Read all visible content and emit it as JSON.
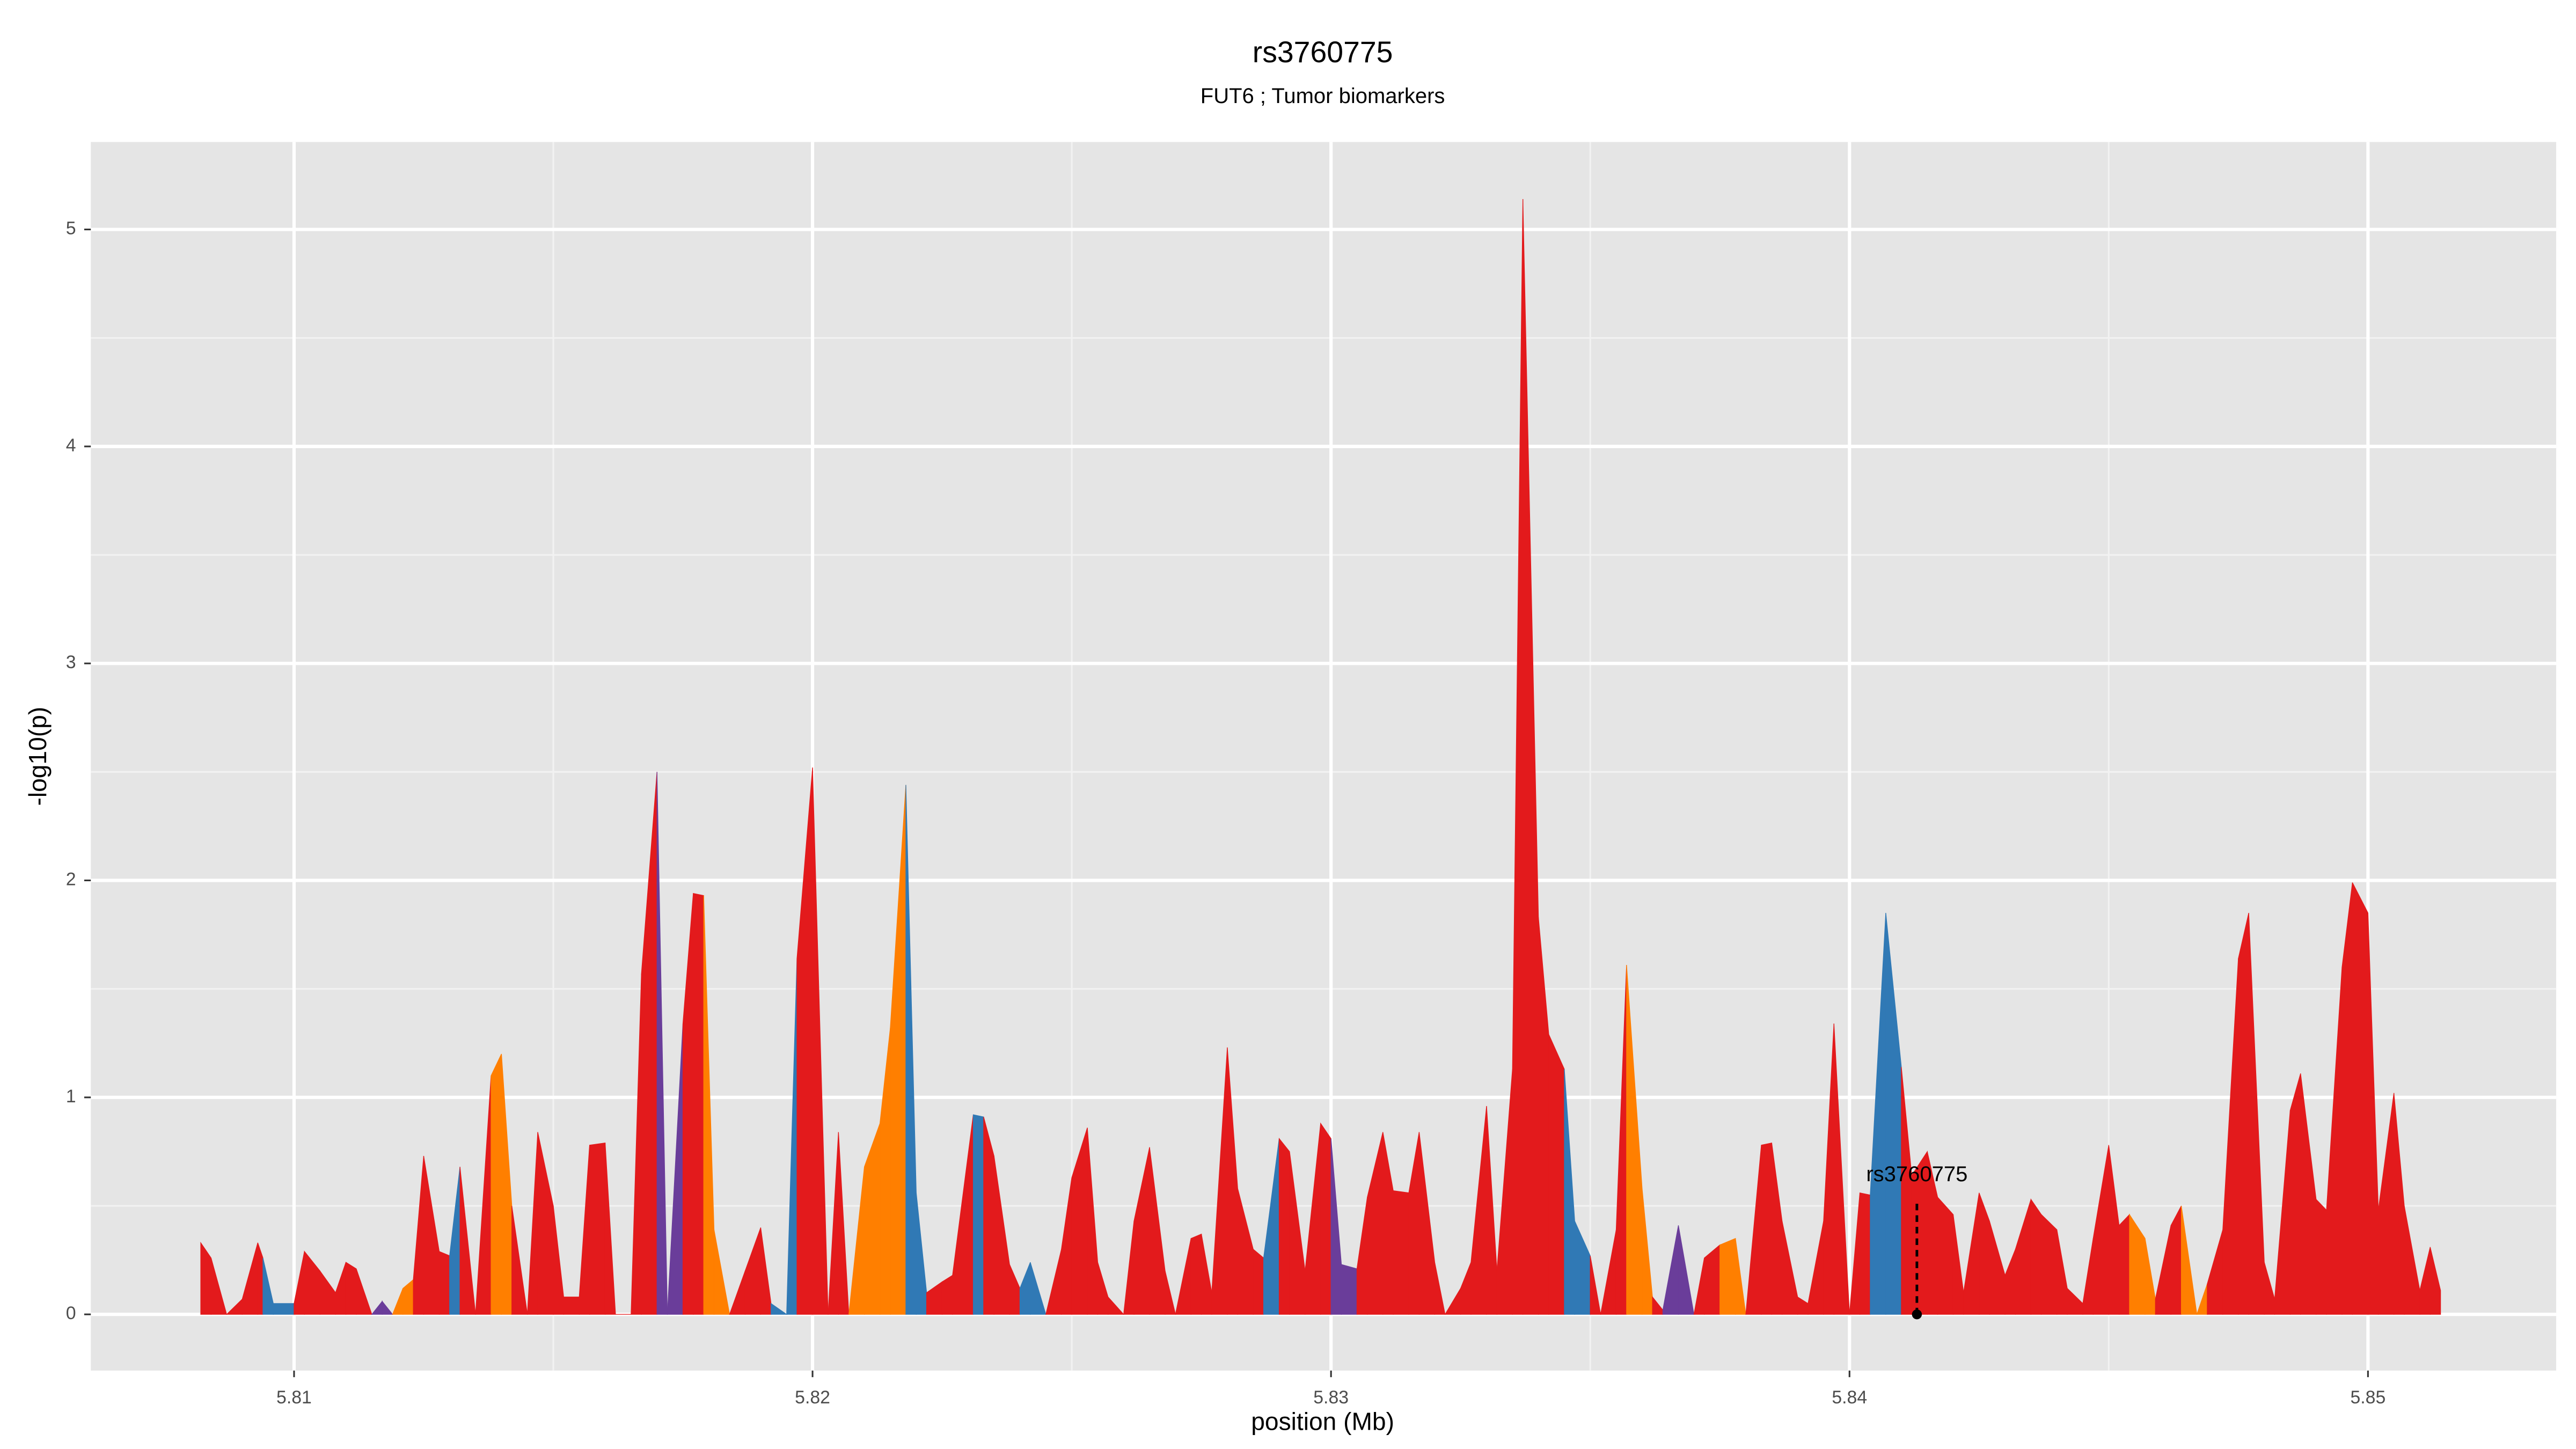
{
  "chart_data": {
    "type": "area",
    "title": "rs3760775",
    "subtitle": "FUT6 ; Tumor biomarkers",
    "x_label": "position (Mb)",
    "y_label": "-log10(p)",
    "xlim": [
      5.80608,
      5.85363
    ],
    "ylim": [
      -0.259,
      5.403
    ],
    "xticks": [
      5.81,
      5.82,
      5.83,
      5.84,
      5.85
    ],
    "yticks": [
      0,
      1,
      2,
      3,
      4,
      5
    ],
    "grid": true,
    "x": [
      5.8082,
      5.8084,
      5.8087,
      5.809,
      5.8093,
      5.8094,
      5.8096,
      5.81,
      5.8102,
      5.8105,
      5.8108,
      5.811,
      5.8112,
      5.8115,
      5.8117,
      5.8119,
      5.8121,
      5.8123,
      5.8125,
      5.8128,
      5.813,
      5.8132,
      5.8135,
      5.8138,
      5.814,
      5.8142,
      5.8145,
      5.8147,
      5.815,
      5.8152,
      5.8155,
      5.8157,
      5.816,
      5.8162,
      5.8165,
      5.8167,
      5.817,
      5.8172,
      5.8175,
      5.8177,
      5.8179,
      5.8181,
      5.8184,
      5.8187,
      5.819,
      5.8192,
      5.8195,
      5.8197,
      5.82,
      5.8203,
      5.8205,
      5.8207,
      5.821,
      5.8213,
      5.8215,
      5.8218,
      5.822,
      5.8222,
      5.8225,
      5.8227,
      5.8231,
      5.8233,
      5.8235,
      5.8238,
      5.824,
      5.8242,
      5.8245,
      5.8248,
      5.825,
      5.8253,
      5.8255,
      5.8257,
      5.826,
      5.8262,
      5.8265,
      5.8268,
      5.827,
      5.8273,
      5.8275,
      5.8277,
      5.828,
      5.8282,
      5.8285,
      5.8287,
      5.829,
      5.8292,
      5.8295,
      5.8298,
      5.83,
      5.8302,
      5.8305,
      5.8307,
      5.831,
      5.8312,
      5.8315,
      5.8317,
      5.832,
      5.8322,
      5.8325,
      5.8327,
      5.833,
      5.8332,
      5.8335,
      5.8337,
      5.834,
      5.8342,
      5.8345,
      5.8347,
      5.835,
      5.8352,
      5.8355,
      5.8357,
      5.836,
      5.8362,
      5.8364,
      5.8367,
      5.837,
      5.8372,
      5.8375,
      5.8378,
      5.838,
      5.8383,
      5.8385,
      5.8387,
      5.839,
      5.8392,
      5.8395,
      5.8397,
      5.84,
      5.8402,
      5.8404,
      5.8407,
      5.841,
      5.8412,
      5.8415,
      5.8417,
      5.842,
      5.8422,
      5.8425,
      5.8427,
      5.843,
      5.8432,
      5.8435,
      5.8437,
      5.844,
      5.8442,
      5.8445,
      5.8447,
      5.845,
      5.8452,
      5.8454,
      5.8457,
      5.8459,
      5.8462,
      5.8464,
      5.8467,
      5.8469,
      5.8472,
      5.8475,
      5.8477,
      5.848,
      5.8482,
      5.8485,
      5.8487,
      5.849,
      5.8492,
      5.8495,
      5.8497,
      5.85,
      5.8502,
      5.8505,
      5.8507,
      5.851,
      5.8512,
      5.8514
    ],
    "values": [
      0.33,
      0.26,
      0,
      0.07,
      0.33,
      0.26,
      0.05,
      0.05,
      0.29,
      0.2,
      0.1,
      0.24,
      0.21,
      0,
      0.06,
      0,
      0.12,
      0.16,
      0.73,
      0.29,
      0.27,
      0.68,
      0,
      1.1,
      1.2,
      0.5,
      0,
      0.84,
      0.5,
      0.08,
      0.08,
      0.78,
      0.79,
      0,
      0,
      1.57,
      2.5,
      0,
      1.34,
      1.94,
      1.93,
      0.39,
      0,
      0.2,
      0.4,
      0.05,
      0,
      1.64,
      2.52,
      0,
      0.84,
      0,
      0.68,
      0.88,
      1.32,
      2.44,
      0.56,
      0.1,
      0.15,
      0.18,
      0.92,
      0.91,
      0.73,
      0.23,
      0.12,
      0.24,
      0,
      0.3,
      0.63,
      0.86,
      0.24,
      0.08,
      0,
      0.43,
      0.77,
      0.2,
      0,
      0.35,
      0.37,
      0.1,
      1.23,
      0.58,
      0.3,
      0.26,
      0.81,
      0.75,
      0.2,
      0.88,
      0.81,
      0.23,
      0.21,
      0.54,
      0.84,
      0.57,
      0.56,
      0.84,
      0.24,
      0,
      0.12,
      0.24,
      0.96,
      0.2,
      1.13,
      5.14,
      1.83,
      1.29,
      1.13,
      0.43,
      0.27,
      0,
      0.39,
      1.61,
      0.58,
      0.08,
      0.02,
      0.41,
      0,
      0.26,
      0.32,
      0.35,
      0,
      0.78,
      0.79,
      0.43,
      0.08,
      0.05,
      0.43,
      1.34,
      0,
      0.56,
      0.55,
      1.85,
      1.14,
      0.64,
      0.75,
      0.54,
      0.46,
      0.1,
      0.56,
      0.43,
      0.18,
      0.3,
      0.53,
      0.46,
      0.39,
      0.12,
      0.05,
      0.35,
      0.78,
      0.41,
      0.46,
      0.35,
      0.07,
      0.41,
      0.5,
      0,
      0.14,
      0.39,
      1.64,
      1.85,
      0.24,
      0.07,
      0.94,
      1.11,
      0.53,
      0.48,
      1.6,
      1.99,
      1.85,
      0.48,
      1.02,
      0.5,
      0.11,
      0.31,
      0.11
    ],
    "colors": [
      "#e31a1c",
      "#e31a1c",
      "#e31a1c",
      "#e31a1c",
      "#e31a1c",
      "#e31a1c",
      "#3079b5",
      "#3079b5",
      "#e31a1c",
      "#e31a1c",
      "#e31a1c",
      "#e31a1c",
      "#e31a1c",
      "#e31a1c",
      "#6a3d9a",
      "#6a3d9a",
      "#ff7f00",
      "#ff7f00",
      "#e31a1c",
      "#e31a1c",
      "#e31a1c",
      "#3079b5",
      "#e31a1c",
      "#e31a1c",
      "#ff7f00",
      "#ff7f00",
      "#e31a1c",
      "#e31a1c",
      "#e31a1c",
      "#e31a1c",
      "#e31a1c",
      "#e31a1c",
      "#e31a1c",
      "#e31a1c",
      "#e31a1c",
      "#e31a1c",
      "#e31a1c",
      "#6a3d9a",
      "#6a3d9a",
      "#e31a1c",
      "#e31a1c",
      "#ff7f00",
      "#ff7f00",
      "#e31a1c",
      "#e31a1c",
      "#e31a1c",
      "#3079b5",
      "#3079b5",
      "#e31a1c",
      "#e31a1c",
      "#e31a1c",
      "#e31a1c",
      "#ff7f00",
      "#ff7f00",
      "#ff7f00",
      "#ff7f00",
      "#3079b5",
      "#3079b5",
      "#e31a1c",
      "#e31a1c",
      "#e31a1c",
      "#3079b5",
      "#e31a1c",
      "#e31a1c",
      "#e31a1c",
      "#3079b5",
      "#3079b5",
      "#e31a1c",
      "#e31a1c",
      "#e31a1c",
      "#e31a1c",
      "#e31a1c",
      "#e31a1c",
      "#e31a1c",
      "#e31a1c",
      "#e31a1c",
      "#e31a1c",
      "#e31a1c",
      "#e31a1c",
      "#e31a1c",
      "#e31a1c",
      "#e31a1c",
      "#e31a1c",
      "#e31a1c",
      "#3079b5",
      "#e31a1c",
      "#e31a1c",
      "#e31a1c",
      "#e31a1c",
      "#6a3d9a",
      "#6a3d9a",
      "#e31a1c",
      "#e31a1c",
      "#e31a1c",
      "#e31a1c",
      "#e31a1c",
      "#e31a1c",
      "#e31a1c",
      "#e31a1c",
      "#e31a1c",
      "#e31a1c",
      "#e31a1c",
      "#e31a1c",
      "#e31a1c",
      "#e31a1c",
      "#e31a1c",
      "#e31a1c",
      "#3079b5",
      "#3079b5",
      "#e31a1c",
      "#e31a1c",
      "#e31a1c",
      "#ff7f00",
      "#ff7f00",
      "#e31a1c",
      "#6a3d9a",
      "#6a3d9a",
      "#e31a1c",
      "#e31a1c",
      "#ff7f00",
      "#ff7f00",
      "#e31a1c",
      "#e31a1c",
      "#e31a1c",
      "#e31a1c",
      "#e31a1c",
      "#e31a1c",
      "#e31a1c",
      "#e31a1c",
      "#e31a1c",
      "#e31a1c",
      "#3079b5",
      "#3079b5",
      "#e31a1c",
      "#e31a1c",
      "#e31a1c",
      "#e31a1c",
      "#e31a1c",
      "#e31a1c",
      "#e31a1c",
      "#e31a1c",
      "#e31a1c",
      "#e31a1c",
      "#e31a1c",
      "#e31a1c",
      "#e31a1c",
      "#e31a1c",
      "#e31a1c",
      "#e31a1c",
      "#e31a1c",
      "#e31a1c",
      "#ff7f00",
      "#ff7f00",
      "#e31a1c",
      "#e31a1c",
      "#ff7f00",
      "#ff7f00",
      "#e31a1c",
      "#e31a1c",
      "#e31a1c",
      "#e31a1c",
      "#e31a1c",
      "#e31a1c",
      "#e31a1c",
      "#e31a1c",
      "#e31a1c",
      "#e31a1c",
      "#e31a1c",
      "#e31a1c",
      "#e31a1c",
      "#e31a1c",
      "#e31a1c",
      "#e31a1c",
      "#e31a1c",
      "#e31a1c",
      "#e31a1c"
    ],
    "annotation": {
      "label": "rs3760775",
      "x": 5.8413,
      "y": 0
    }
  }
}
